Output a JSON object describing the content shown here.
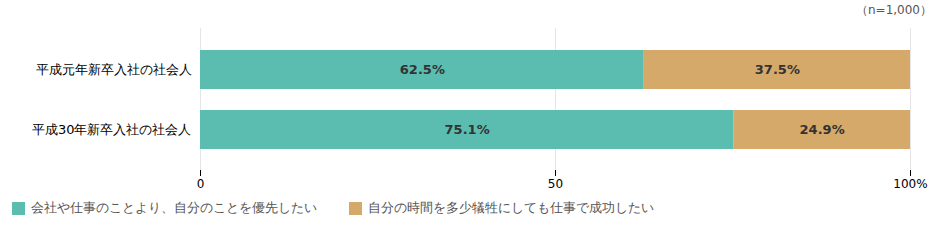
{
  "chart_data": {
    "type": "bar",
    "orientation": "horizontal",
    "stacked": true,
    "categories": [
      "平成元年新卒入社の社会人",
      "平成30年新卒入社の社会人"
    ],
    "series": [
      {
        "name": "会社や仕事のことより、自分のことを優先したい",
        "color": "#5BBDB0",
        "values": [
          62.5,
          75.1
        ],
        "value_labels": [
          "62.5%",
          "75.1%"
        ]
      },
      {
        "name": "自分の時間を多少犠牲にしても仕事で成功したい",
        "color": "#D4A96A",
        "values": [
          37.5,
          24.9
        ],
        "value_labels": [
          "37.5%",
          "24.9%"
        ]
      }
    ],
    "xlim": [
      0,
      100
    ],
    "xticks": [
      0,
      50,
      {
        "value": 100,
        "label": "100%"
      }
    ],
    "grid": true,
    "data_labels": true,
    "legend": "bottom",
    "annotations": [
      "（n=1,000）"
    ]
  }
}
